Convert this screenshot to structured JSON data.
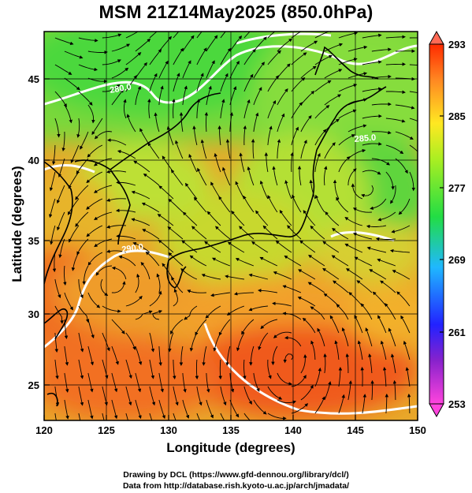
{
  "title": "MSM 21Z14May2025 (850.0hPa)",
  "x_axis": {
    "label": "Longitude (degrees)",
    "range": [
      120,
      150
    ],
    "ticks": [
      "120",
      "125",
      "130",
      "135",
      "140",
      "145",
      "150"
    ]
  },
  "y_axis": {
    "label": "Latitude  (degrees)",
    "range": [
      22.5,
      47.5
    ],
    "ticks": [
      "25",
      "30",
      "35",
      "40",
      "45"
    ]
  },
  "colorbar": {
    "range": [
      253,
      293
    ],
    "ticks": [
      "293",
      "285",
      "277",
      "269",
      "261",
      "253"
    ],
    "colors": [
      "#ff44dd",
      "#2222ff",
      "#1fb8ff",
      "#22dd44",
      "#aaee22",
      "#ffe822",
      "#ff8822",
      "#ff2a00"
    ]
  },
  "contour_labels": [
    {
      "text": "280.0"
    },
    {
      "text": "285.0"
    },
    {
      "text": "290.0"
    }
  ],
  "credits": {
    "line1": "Drawing by DCL (https://www.gfd-dennou.org/library/dcl/)",
    "line2": "Data from http://database.rish.kyoto-u.ac.jp/arch/jmadata/"
  }
}
